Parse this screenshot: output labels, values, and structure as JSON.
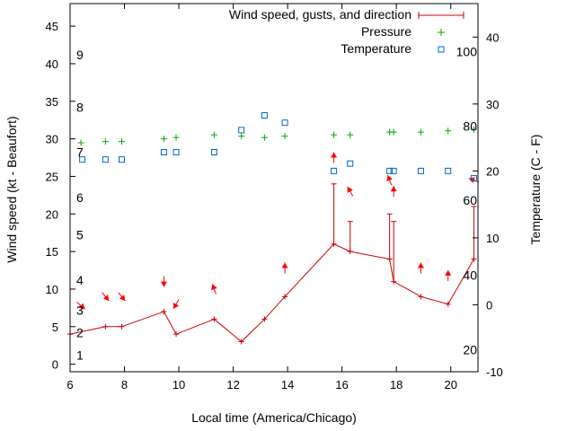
{
  "chart_data": {
    "type": "line",
    "xlabel": "Local time (America/Chicago)",
    "ylabel_left": "Wind speed (kt - Beaufort)",
    "ylabel_right": "Temperature (C - F)",
    "xlim": [
      6,
      21
    ],
    "ylim_left": [
      -1,
      48
    ],
    "ylim_right": [
      -10,
      45
    ],
    "x_ticks": [
      "6",
      "8",
      "10",
      "12",
      "14",
      "16",
      "18",
      "20"
    ],
    "x_tick_values": [
      6,
      8,
      10,
      12,
      14,
      16,
      18,
      20
    ],
    "y_left_ticks": [
      "0",
      "5",
      "10",
      "15",
      "20",
      "25",
      "30",
      "35",
      "40",
      "45"
    ],
    "y_left_tick_values": [
      0,
      5,
      10,
      15,
      20,
      25,
      30,
      35,
      40,
      45
    ],
    "y_right_ticks": [
      "-10",
      "0",
      "10",
      "20",
      "30",
      "40"
    ],
    "y_right_tick_values": [
      -10,
      0,
      10,
      20,
      30,
      40
    ],
    "beaufort_labels": [
      {
        "text": "1",
        "kt": 1.2
      },
      {
        "text": "2",
        "kt": 4.2
      },
      {
        "text": "3",
        "kt": 7.2
      },
      {
        "text": "4",
        "kt": 11.2
      },
      {
        "text": "5",
        "kt": 17.2
      },
      {
        "text": "6",
        "kt": 22.2
      },
      {
        "text": "7",
        "kt": 28.2
      },
      {
        "text": "8",
        "kt": 34.2
      },
      {
        "text": "9",
        "kt": 41.2
      }
    ],
    "fahrenheit_labels": [
      {
        "text": "20",
        "c": -6.7
      },
      {
        "text": "40",
        "c": 4.4
      },
      {
        "text": "60",
        "c": 15.6
      },
      {
        "text": "80",
        "c": 26.7
      },
      {
        "text": "100",
        "c": 37.8
      }
    ],
    "colors": {
      "wind": "#ff0000",
      "wind_line": "#cc0000",
      "pressure": "#00aa00",
      "temperature": "#0066cc"
    },
    "series": [
      {
        "name": "Wind speed, gusts, and direction",
        "axis": "left",
        "x": [
          6.0,
          7.3,
          7.9,
          9.45,
          9.9,
          11.3,
          12.3,
          13.15,
          13.9,
          15.7,
          16.3,
          17.75,
          17.9,
          18.9,
          19.9,
          20.85
        ],
        "y": [
          4,
          5,
          5,
          7,
          4,
          6,
          3,
          6,
          9,
          16,
          15,
          14,
          11,
          9,
          8,
          14
        ],
        "gusts": [
          null,
          null,
          null,
          null,
          null,
          null,
          null,
          null,
          null,
          24,
          19,
          20,
          19,
          null,
          null,
          21
        ]
      },
      {
        "name": "Pressure",
        "axis": "right",
        "x": [
          6.4,
          7.3,
          7.9,
          9.45,
          9.9,
          11.3,
          12.3,
          13.15,
          13.9,
          15.7,
          16.3,
          17.75,
          17.9,
          18.9,
          19.9,
          20.85
        ],
        "y": [
          24.2,
          24.4,
          24.4,
          24.8,
          25.0,
          25.4,
          25.2,
          25.0,
          25.2,
          25.4,
          25.4,
          25.8,
          25.8,
          25.8,
          26.0,
          26.2
        ]
      },
      {
        "name": "Temperature",
        "axis": "right",
        "x": [
          6.45,
          7.3,
          7.9,
          9.45,
          9.9,
          11.3,
          12.3,
          13.15,
          13.9,
          15.7,
          16.3,
          17.75,
          17.9,
          18.9,
          19.9,
          20.85
        ],
        "y": [
          21.7,
          21.7,
          21.7,
          22.8,
          22.8,
          22.8,
          26.1,
          28.3,
          27.2,
          20.0,
          21.1,
          20.0,
          20.0,
          20.0,
          20.0,
          18.9
        ]
      }
    ],
    "wind_arrows": [
      {
        "x": 6.4,
        "kt": 7.8,
        "dir": 310
      },
      {
        "x": 7.3,
        "kt": 9.0,
        "dir": 320
      },
      {
        "x": 7.9,
        "kt": 9.0,
        "dir": 320
      },
      {
        "x": 9.45,
        "kt": 11.0,
        "dir": 0
      },
      {
        "x": 9.9,
        "kt": 8.0,
        "dir": 30
      },
      {
        "x": 11.3,
        "kt": 10.0,
        "dir": 160
      },
      {
        "x": 13.9,
        "kt": 12.8,
        "dir": 180
      },
      {
        "x": 15.7,
        "kt": 27.5,
        "dir": 180
      },
      {
        "x": 16.3,
        "kt": 23.0,
        "dir": 150
      },
      {
        "x": 17.75,
        "kt": 24.5,
        "dir": 160
      },
      {
        "x": 17.9,
        "kt": 23.0,
        "dir": 180
      },
      {
        "x": 18.9,
        "kt": 12.8,
        "dir": 180
      },
      {
        "x": 19.9,
        "kt": 11.8,
        "dir": 180
      },
      {
        "x": 20.85,
        "kt": 24.5,
        "dir": 110
      }
    ],
    "legend_placement": "top-right",
    "grid": false
  }
}
